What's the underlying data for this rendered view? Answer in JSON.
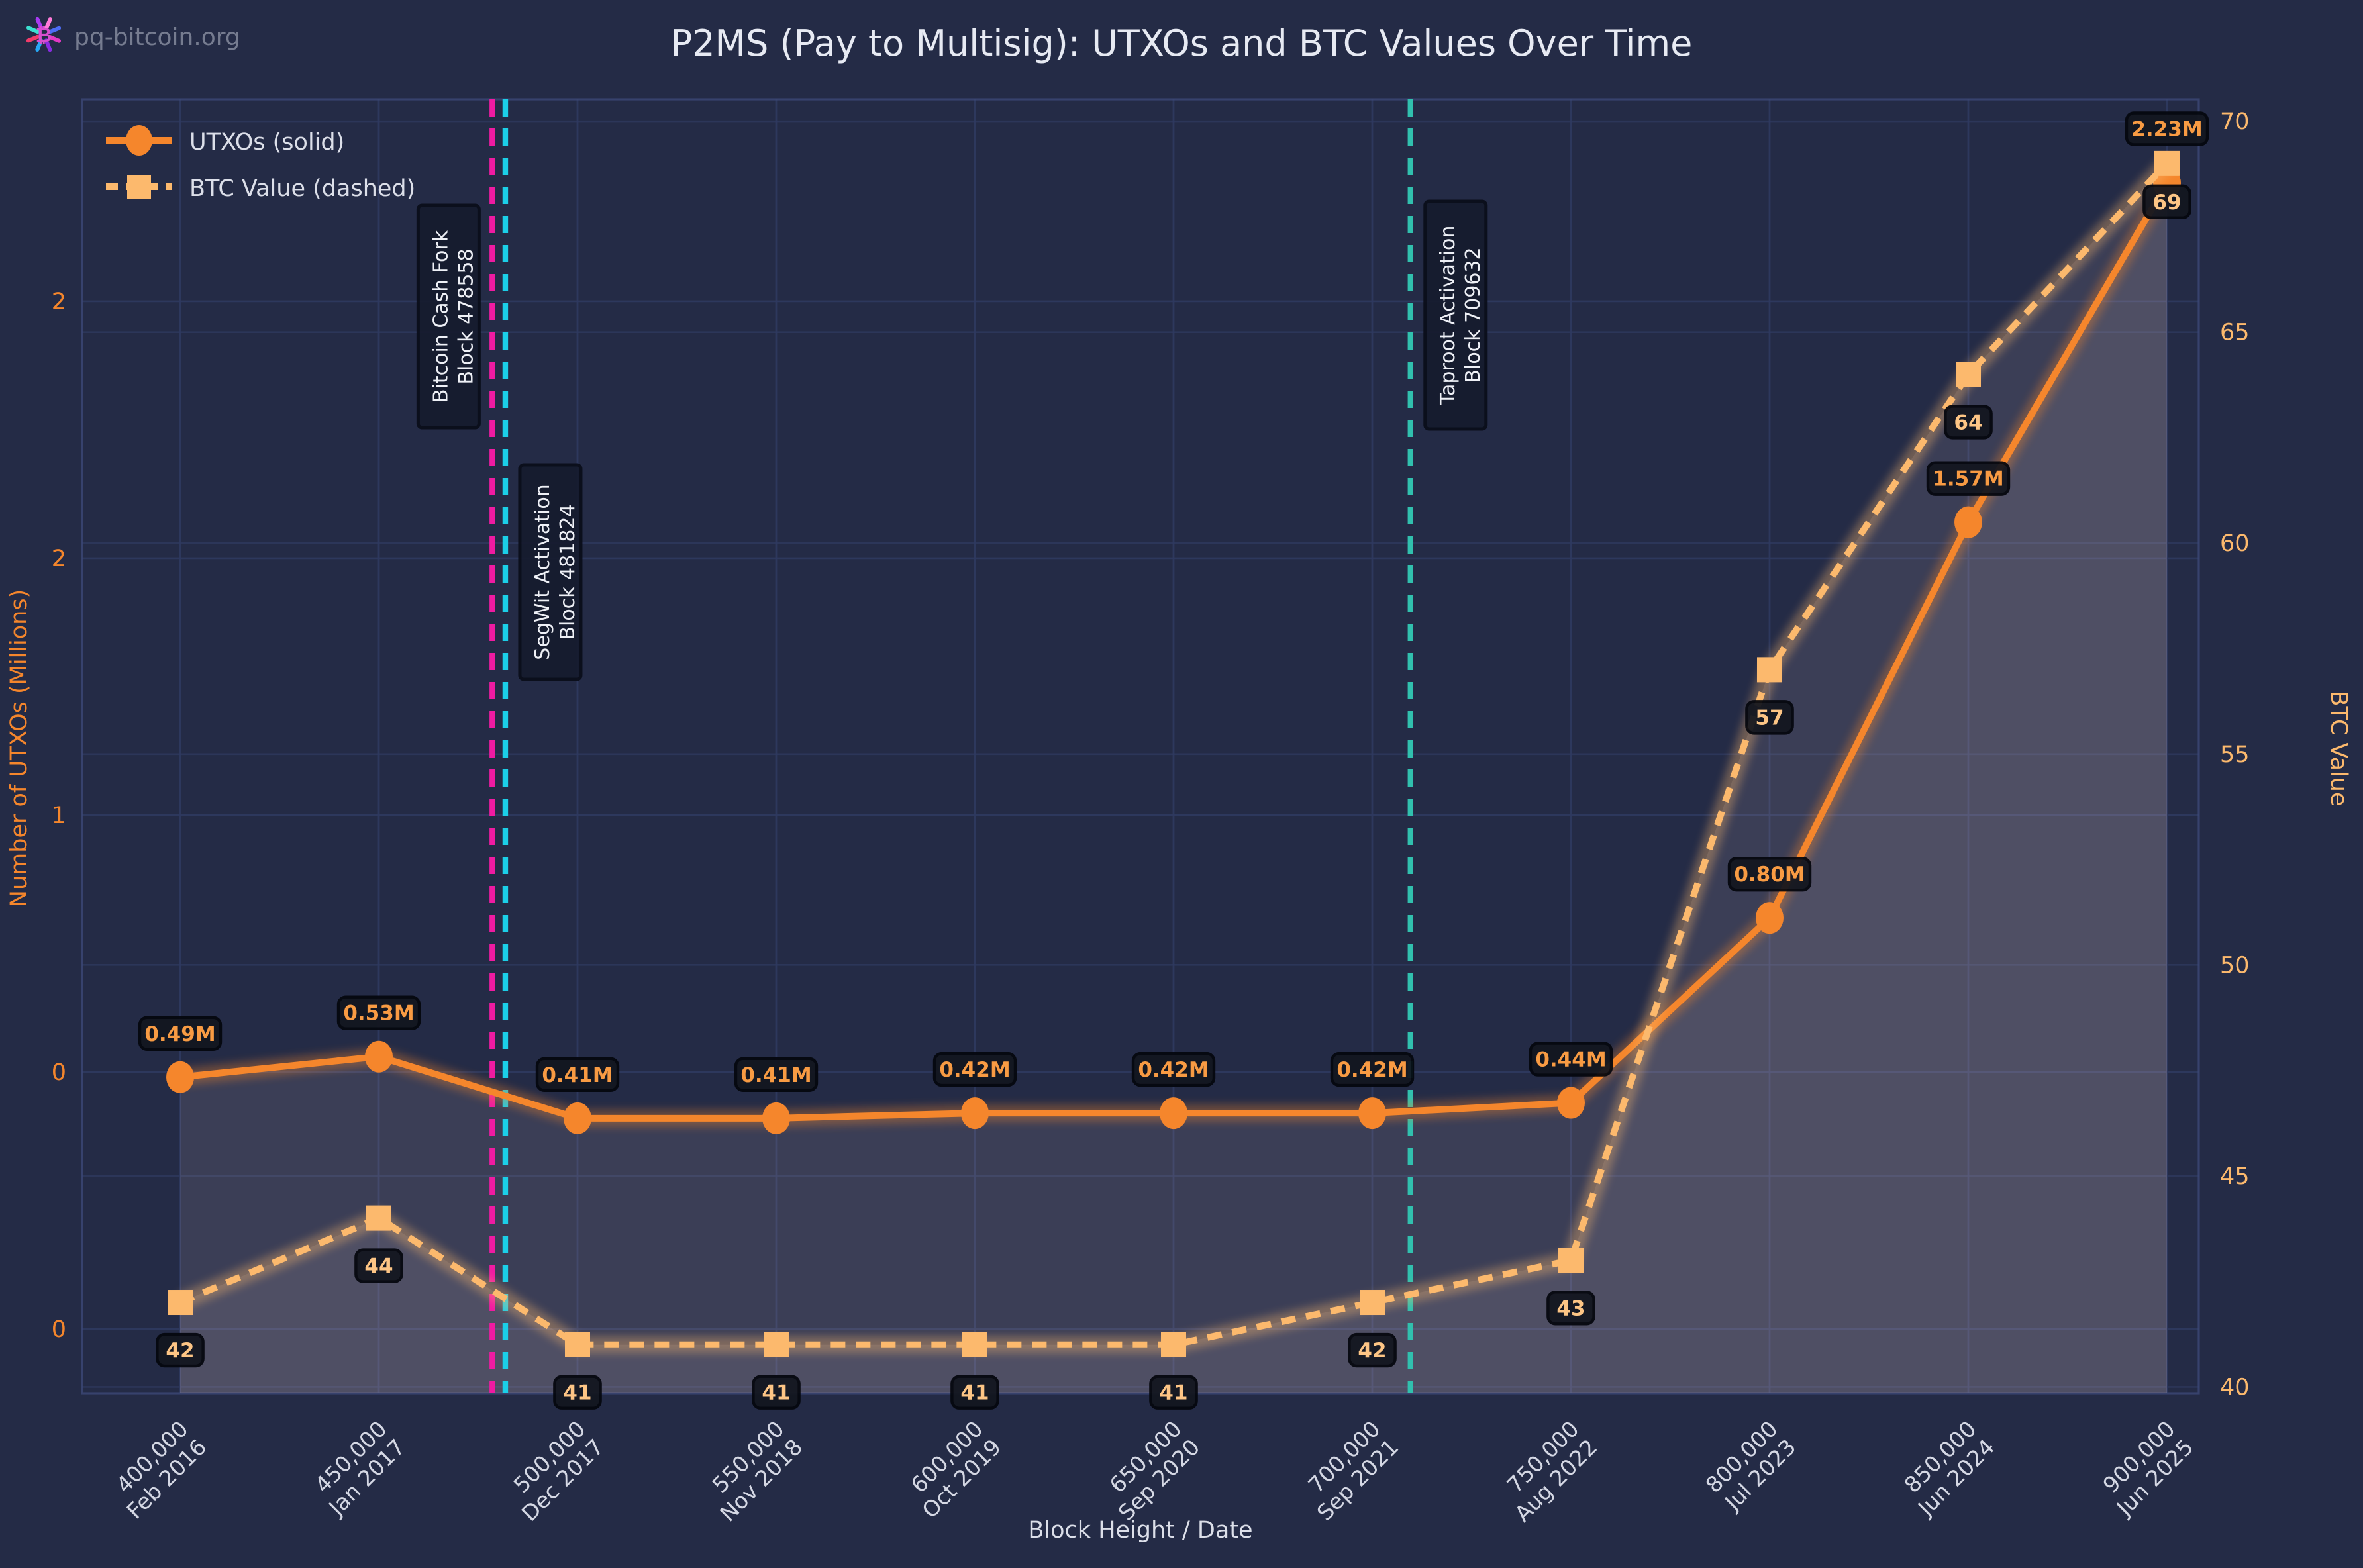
{
  "logo": {
    "site_name": "pq-bitcoin.org",
    "icon": "bitcoin-burst-icon"
  },
  "chart_data": {
    "type": "line",
    "title": "P2MS (Pay to Multisig): UTXOs and BTC Values Over Time",
    "xlabel": "Block Height / Date",
    "ylabel_left": "Number of UTXOs (Millions)",
    "ylabel_right": "BTC Value",
    "legend": {
      "position": "upper-left",
      "entries": [
        "UTXOs (solid)",
        "BTC Value (dashed)"
      ]
    },
    "grid": true,
    "x_ticks": [
      {
        "block": 400000,
        "block_label": "400,000",
        "date_label": "Feb 2016"
      },
      {
        "block": 450000,
        "block_label": "450,000",
        "date_label": "Jan 2017"
      },
      {
        "block": 500000,
        "block_label": "500,000",
        "date_label": "Dec 2017"
      },
      {
        "block": 550000,
        "block_label": "550,000",
        "date_label": "Nov 2018"
      },
      {
        "block": 600000,
        "block_label": "600,000",
        "date_label": "Oct 2019"
      },
      {
        "block": 650000,
        "block_label": "650,000",
        "date_label": "Sep 2020"
      },
      {
        "block": 700000,
        "block_label": "700,000",
        "date_label": "Sep 2021"
      },
      {
        "block": 750000,
        "block_label": "750,000",
        "date_label": "Aug 2022"
      },
      {
        "block": 800000,
        "block_label": "800,000",
        "date_label": "Jul 2023"
      },
      {
        "block": 850000,
        "block_label": "850,000",
        "date_label": "Jun 2024"
      },
      {
        "block": 900000,
        "block_label": "900,000",
        "date_label": "Jun 2025"
      }
    ],
    "series": [
      {
        "name": "UTXOs (solid)",
        "axis": "left",
        "line_style": "solid",
        "marker": "circle",
        "values": [
          0.49,
          0.53,
          0.41,
          0.41,
          0.42,
          0.42,
          0.42,
          0.44,
          0.8,
          1.57,
          2.23
        ],
        "point_labels": [
          "0.49M",
          "0.53M",
          "0.41M",
          "0.41M",
          "0.42M",
          "0.42M",
          "0.42M",
          "0.44M",
          "0.80M",
          "1.57M",
          "2.23M"
        ],
        "label_side": "above"
      },
      {
        "name": "BTC Value (dashed)",
        "axis": "right",
        "line_style": "dashed",
        "marker": "square",
        "values": [
          42,
          44,
          41,
          41,
          41,
          41,
          42,
          43,
          57,
          64,
          69
        ],
        "point_labels": [
          "42",
          "44",
          "41",
          "41",
          "41",
          "41",
          "42",
          "43",
          "57",
          "64",
          "69"
        ],
        "label_side": "below"
      }
    ],
    "left_axis": {
      "tick_values": [
        0,
        0.5,
        1,
        1.5,
        2
      ],
      "tick_labels": [
        "0",
        "0",
        "1",
        "2",
        "2"
      ],
      "ylim": [
        -0.125,
        2.393
      ]
    },
    "right_axis": {
      "tick_values": [
        40,
        45,
        50,
        55,
        60,
        65,
        70
      ],
      "tick_labels": [
        "40",
        "45",
        "50",
        "55",
        "60",
        "65",
        "70"
      ],
      "ylim": [
        39.85,
        70.52
      ]
    },
    "xlim_blocks": [
      375300,
      908000
    ],
    "events": [
      {
        "lines": [
          "Bitcoin Cash Fork",
          "Block 478558"
        ],
        "block": 478558,
        "color": "#ef1ba2",
        "label_side": "left"
      },
      {
        "lines": [
          "SegWit Activation",
          "Block 481824"
        ],
        "block": 481824,
        "color": "#1bcfe8",
        "label_side": "right"
      },
      {
        "lines": [
          "Taproot Activation",
          "Block 709632"
        ],
        "block": 709632,
        "color": "#31c0ae",
        "label_side": "right"
      }
    ],
    "colors": {
      "background": "#242b46",
      "grid": "#2f3a60",
      "spine": "#3c4977",
      "title_text": "#e7eaf3",
      "tick_text": "#d5d8e4",
      "utxo": "#f5862c",
      "btc": "#fcb96d",
      "utxo_label_text": "#f89b43",
      "btc_label_text": "#fdc585",
      "point_label_box": "#13161f",
      "point_label_border": "#05070e",
      "area_fill": "rgba(213,195,203,0.13)",
      "event_box": "#161b2e",
      "event_box_border": "#0a0d19",
      "event_text": "#eef0f6",
      "logo_text": "#767c90",
      "left_axis_color": "#f5862c",
      "right_axis_color": "#fcb96d"
    }
  }
}
